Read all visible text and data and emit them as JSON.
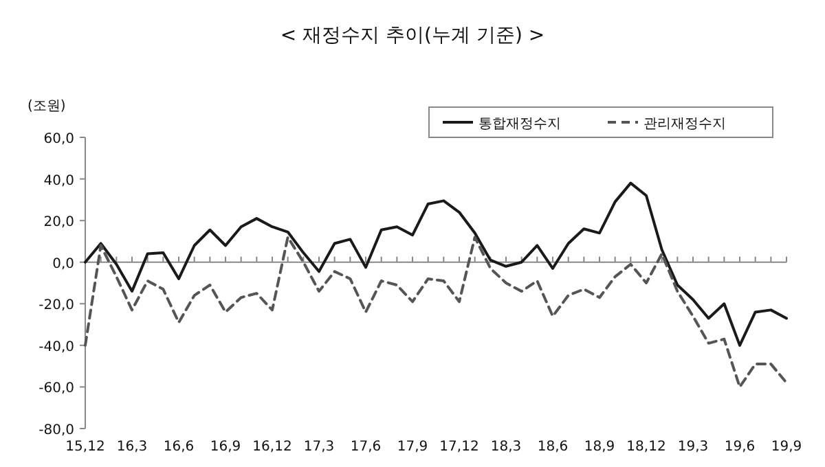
{
  "chart_data": {
    "type": "line",
    "title": "< 재정수지 추이(누계 기준) >",
    "ylabel": "(조원)",
    "categories": [
      "15,12",
      null,
      null,
      "16,3",
      null,
      null,
      "16,6",
      null,
      null,
      "16,9",
      null,
      null,
      "16,12",
      null,
      null,
      "17,3",
      null,
      null,
      "17,6",
      null,
      null,
      "17,9",
      null,
      null,
      "17,12",
      null,
      null,
      "18,3",
      null,
      null,
      "18,6",
      null,
      null,
      "18,9",
      null,
      null,
      "18,12",
      null,
      null,
      "19,3",
      null,
      null,
      "19,6",
      null,
      null,
      "19,9"
    ],
    "ylim": [
      -80,
      60
    ],
    "yticks": [
      {
        "value": -80,
        "label": "-80,0"
      },
      {
        "value": -60,
        "label": "-60,0"
      },
      {
        "value": -40,
        "label": "-40,0"
      },
      {
        "value": -20,
        "label": "-20,0"
      },
      {
        "value": 0,
        "label": "0,0"
      },
      {
        "value": 20,
        "label": "20,0"
      },
      {
        "value": 40,
        "label": "40,0"
      },
      {
        "value": 60,
        "label": "60,0"
      }
    ],
    "series": [
      {
        "name": "통합재정수지",
        "color": "#1a1a1a",
        "line_style": "solid",
        "values": [
          0,
          9,
          -1,
          -14,
          4,
          4.5,
          -8,
          8,
          15.5,
          8,
          17,
          21,
          17,
          14.5,
          4.5,
          -4.5,
          9,
          11,
          -2.5,
          15.5,
          17,
          13,
          28,
          29.5,
          24,
          14,
          1,
          -2,
          0,
          8,
          -3,
          9,
          16,
          14,
          29,
          38,
          32,
          6,
          -11,
          -18,
          -27,
          -20,
          -40,
          -24,
          -23,
          -27
        ]
      },
      {
        "name": "관리재정수지",
        "color": "#555555",
        "line_style": "dashed",
        "values": [
          -40,
          8,
          -7,
          -23,
          -9,
          -13,
          -29,
          -16,
          -11,
          -24,
          -17,
          -15,
          -23,
          12,
          0,
          -14,
          -4.5,
          -8,
          -24,
          -9,
          -11,
          -19,
          -8,
          -9,
          -19,
          12,
          -3,
          -10,
          -14,
          -9,
          -26,
          -16,
          -13,
          -17,
          -7,
          -1,
          -10,
          4,
          -14,
          -26,
          -39,
          -37,
          -60,
          -49,
          -49,
          -58
        ]
      }
    ],
    "ref_lines": [
      {
        "axis": "y",
        "value": 0,
        "color": "#888888"
      }
    ],
    "legend": "top right",
    "grid": false,
    "marker": "none"
  }
}
